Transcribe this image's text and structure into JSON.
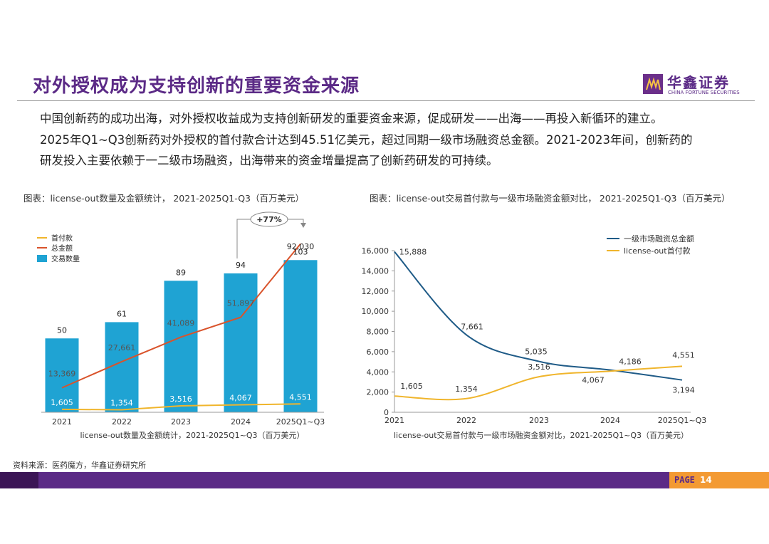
{
  "header": {
    "title": "对外授权成为支持创新的重要资金来源",
    "logo_cn": "华鑫证券",
    "logo_en": "CHINA FORTUNE SECURITIES"
  },
  "intro": {
    "line1": "中国创新药的成功出海，对外授权收益成为支持创新研发的重要资金来源，促成研发——出海——再投入新循环的建立。",
    "line2": "2025年Q1~Q3创新药对外授权的首付款合计达到45.51亿美元，超过同期一级市场融资总金额。2021-2023年间，创新药的",
    "line3": "研发投入主要依赖于一二级市场融资，出海带来的资金增量提高了创新药研发的可持续。"
  },
  "captions": {
    "left": "图表：license-out数量及金额统计， 2021-2025Q1-Q3（百万美元）",
    "right": "图表：license-out交易首付款与一级市场融资金额对比， 2021-2025Q1-Q3（百万美元）"
  },
  "chart_data": [
    {
      "type": "bar",
      "title": "license-out数量及金额统计，2021-2025Q1~Q3（百万美元）",
      "categories": [
        "2021",
        "2022",
        "2023",
        "2024",
        "2025Q1~Q3"
      ],
      "series": [
        {
          "name": "交易数量",
          "kind": "bar",
          "color": "#1fa3d3",
          "values": [
            50,
            61,
            89,
            94,
            103
          ]
        },
        {
          "name": "总金额",
          "kind": "line",
          "color": "#d9532b",
          "values": [
            13369,
            27661,
            41089,
            51897,
            92030
          ]
        },
        {
          "name": "首付款",
          "kind": "line",
          "color": "#f0b52c",
          "values": [
            1605,
            1354,
            3516,
            4067,
            4551
          ]
        }
      ],
      "labels": {
        "bars": [
          "50",
          "61",
          "89",
          "94",
          "103"
        ],
        "total": [
          "13,369",
          "27,661",
          "41,089",
          "51,897",
          "92,030"
        ],
        "upfront": [
          "1,605",
          "1,354",
          "3,516",
          "4,067",
          "4,551"
        ]
      },
      "legend": [
        "首付款",
        "总金额",
        "交易数量"
      ],
      "legend_position": "top-left",
      "annotation": "+77%",
      "bar_ylim": [
        0,
        120
      ],
      "line_ylim": [
        0,
        100000
      ]
    },
    {
      "type": "line",
      "title": "license-out交易首付款与一级市场融资金额对比，2021-2025Q1~Q3（百万美元）",
      "categories": [
        "2021",
        "2022",
        "2023",
        "2024",
        "2025Q1~Q3"
      ],
      "series": [
        {
          "name": "一级市场融资总金额",
          "color": "#1f5b87",
          "values": [
            15888,
            7661,
            5035,
            4186,
            3194
          ]
        },
        {
          "name": "license-out首付款",
          "color": "#f0b52c",
          "values": [
            1605,
            1354,
            3516,
            4067,
            4551
          ]
        }
      ],
      "labels": {
        "primary": [
          "15,888",
          "7,661",
          "5,035",
          "4,186",
          "3,194"
        ],
        "upfront": [
          "1,605",
          "1,354",
          "3,516",
          "4,067",
          "4,551"
        ]
      },
      "yticks": [
        "0",
        "2,000",
        "4,000",
        "6,000",
        "8,000",
        "10,000",
        "12,000",
        "14,000",
        "16,000"
      ],
      "ylim": [
        0,
        16000
      ],
      "legend_position": "top-right"
    }
  ],
  "footer": {
    "source": "资料来源：医药魔方，华鑫证券研究所",
    "page_label": "PAGE",
    "page_number": "14"
  },
  "colors": {
    "brand": "#5b2a86",
    "accent": "#f39a33"
  }
}
